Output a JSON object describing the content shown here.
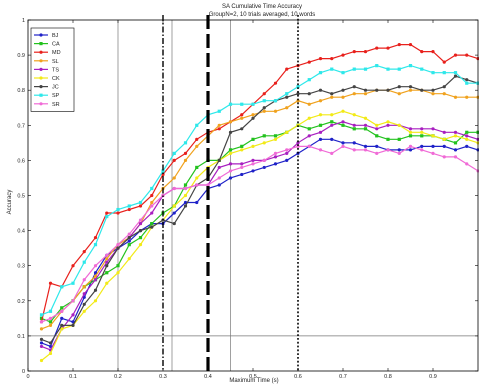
{
  "chart_data": {
    "type": "line",
    "title": "SA Cumulative Time Accuracy",
    "subtitle": "GroupN=2, 10 trials averaged, 10 words",
    "xlabel": "Maximum Time (s)",
    "ylabel": "Accuracy",
    "xlim": [
      0,
      1.0
    ],
    "ylim": [
      0,
      1
    ],
    "xticks": [
      "0",
      "0.1",
      "0.2",
      "0.3",
      "0.4",
      "0.5",
      "0.6",
      "0.7",
      "0.8",
      "0.9"
    ],
    "yticks": [
      "0",
      "0.1",
      "0.2",
      "0.3",
      "0.4",
      "0.5",
      "0.6",
      "0.7",
      "0.8",
      "0.9",
      "1"
    ],
    "grid": "vertical lines at 0.2, 0.32, 0.45; horizontal line at 0.1",
    "legend_position": "top-left",
    "x": [
      0.03,
      0.05,
      0.075,
      0.1,
      0.125,
      0.15,
      0.175,
      0.2,
      0.225,
      0.25,
      0.275,
      0.3,
      0.325,
      0.35,
      0.375,
      0.4,
      0.425,
      0.45,
      0.475,
      0.5,
      0.525,
      0.55,
      0.575,
      0.6,
      0.625,
      0.65,
      0.675,
      0.7,
      0.725,
      0.75,
      0.775,
      0.8,
      0.825,
      0.85,
      0.875,
      0.9,
      0.925,
      0.95,
      0.975,
      1.0
    ],
    "series": [
      {
        "name": "BJ",
        "color": "#1f22c8",
        "marker": "circle",
        "values": [
          0.08,
          0.07,
          0.15,
          0.14,
          0.21,
          0.28,
          0.33,
          0.35,
          0.37,
          0.4,
          0.42,
          0.42,
          0.45,
          0.48,
          0.48,
          0.52,
          0.53,
          0.55,
          0.56,
          0.57,
          0.58,
          0.59,
          0.6,
          0.62,
          0.64,
          0.66,
          0.66,
          0.65,
          0.65,
          0.64,
          0.64,
          0.63,
          0.63,
          0.63,
          0.64,
          0.64,
          0.64,
          0.63,
          0.64,
          0.63
        ]
      },
      {
        "name": "CA",
        "color": "#23c21e",
        "marker": "square",
        "values": [
          0.15,
          0.14,
          0.18,
          0.2,
          0.24,
          0.26,
          0.28,
          0.3,
          0.36,
          0.38,
          0.42,
          0.45,
          0.47,
          0.53,
          0.58,
          0.6,
          0.6,
          0.63,
          0.64,
          0.66,
          0.67,
          0.67,
          0.68,
          0.7,
          0.69,
          0.7,
          0.71,
          0.7,
          0.69,
          0.69,
          0.67,
          0.66,
          0.66,
          0.67,
          0.67,
          0.67,
          0.66,
          0.65,
          0.68,
          0.68
        ]
      },
      {
        "name": "MD",
        "color": "#e8201c",
        "marker": "circle",
        "values": [
          0.14,
          0.25,
          0.24,
          0.3,
          0.34,
          0.38,
          0.45,
          0.45,
          0.46,
          0.47,
          0.5,
          0.56,
          0.6,
          0.62,
          0.66,
          0.68,
          0.69,
          0.71,
          0.73,
          0.76,
          0.79,
          0.82,
          0.86,
          0.87,
          0.88,
          0.89,
          0.89,
          0.9,
          0.91,
          0.91,
          0.92,
          0.92,
          0.93,
          0.93,
          0.91,
          0.91,
          0.88,
          0.9,
          0.9,
          0.89
        ]
      },
      {
        "name": "SL",
        "color": "#f0a21e",
        "marker": "circle",
        "values": [
          0.12,
          0.13,
          0.17,
          0.2,
          0.24,
          0.27,
          0.32,
          0.36,
          0.38,
          0.42,
          0.48,
          0.52,
          0.55,
          0.6,
          0.64,
          0.67,
          0.7,
          0.71,
          0.72,
          0.73,
          0.74,
          0.74,
          0.75,
          0.77,
          0.76,
          0.77,
          0.78,
          0.78,
          0.79,
          0.79,
          0.8,
          0.8,
          0.79,
          0.8,
          0.8,
          0.79,
          0.79,
          0.78,
          0.78,
          0.78
        ]
      },
      {
        "name": "TS",
        "color": "#a81fc0",
        "marker": "circle",
        "values": [
          0.07,
          0.06,
          0.12,
          0.16,
          0.22,
          0.26,
          0.31,
          0.35,
          0.38,
          0.42,
          0.45,
          0.5,
          0.52,
          0.52,
          0.53,
          0.53,
          0.58,
          0.59,
          0.59,
          0.6,
          0.6,
          0.61,
          0.62,
          0.65,
          0.67,
          0.68,
          0.7,
          0.71,
          0.7,
          0.7,
          0.69,
          0.7,
          0.7,
          0.69,
          0.69,
          0.69,
          0.68,
          0.68,
          0.67,
          0.66
        ]
      },
      {
        "name": "CK",
        "color": "#f2ea17",
        "marker": "circle",
        "values": [
          0.03,
          0.05,
          0.12,
          0.13,
          0.17,
          0.2,
          0.25,
          0.28,
          0.32,
          0.36,
          0.41,
          0.43,
          0.47,
          0.5,
          0.55,
          0.58,
          0.6,
          0.62,
          0.63,
          0.64,
          0.65,
          0.66,
          0.68,
          0.7,
          0.72,
          0.73,
          0.73,
          0.74,
          0.73,
          0.72,
          0.7,
          0.71,
          0.7,
          0.68,
          0.68,
          0.67,
          0.66,
          0.67,
          0.66,
          0.65
        ]
      },
      {
        "name": "JC",
        "color": "#444444",
        "marker": "circle",
        "values": [
          0.09,
          0.08,
          0.13,
          0.13,
          0.19,
          0.23,
          0.3,
          0.35,
          0.38,
          0.4,
          0.41,
          0.43,
          0.42,
          0.47,
          0.53,
          0.55,
          0.6,
          0.68,
          0.69,
          0.72,
          0.75,
          0.77,
          0.78,
          0.79,
          0.79,
          0.8,
          0.79,
          0.8,
          0.81,
          0.8,
          0.8,
          0.8,
          0.81,
          0.81,
          0.8,
          0.8,
          0.81,
          0.84,
          0.83,
          0.82
        ]
      },
      {
        "name": "SP",
        "color": "#2ee8ea",
        "marker": "square",
        "values": [
          0.16,
          0.17,
          0.24,
          0.25,
          0.31,
          0.36,
          0.44,
          0.46,
          0.47,
          0.48,
          0.52,
          0.57,
          0.62,
          0.65,
          0.7,
          0.73,
          0.74,
          0.76,
          0.76,
          0.76,
          0.77,
          0.77,
          0.79,
          0.81,
          0.83,
          0.85,
          0.86,
          0.85,
          0.86,
          0.86,
          0.87,
          0.86,
          0.86,
          0.87,
          0.86,
          0.85,
          0.85,
          0.85,
          0.82,
          0.82
        ]
      },
      {
        "name": "SR",
        "color": "#f06ad6",
        "marker": "circle",
        "values": [
          0.14,
          0.15,
          0.17,
          0.2,
          0.26,
          0.3,
          0.33,
          0.36,
          0.39,
          0.43,
          0.47,
          0.5,
          0.52,
          0.52,
          0.53,
          0.53,
          0.55,
          0.57,
          0.58,
          0.59,
          0.6,
          0.62,
          0.63,
          0.64,
          0.64,
          0.63,
          0.62,
          0.64,
          0.63,
          0.63,
          0.62,
          0.63,
          0.62,
          0.64,
          0.63,
          0.62,
          0.61,
          0.61,
          0.59,
          0.57
        ]
      }
    ],
    "vertical_markers": [
      {
        "x": 0.3,
        "style": "dash-dot",
        "color": "#000000"
      },
      {
        "x": 0.4,
        "style": "long-dash",
        "color": "#000000"
      },
      {
        "x": 0.6,
        "style": "dotted",
        "color": "#000000"
      }
    ]
  }
}
